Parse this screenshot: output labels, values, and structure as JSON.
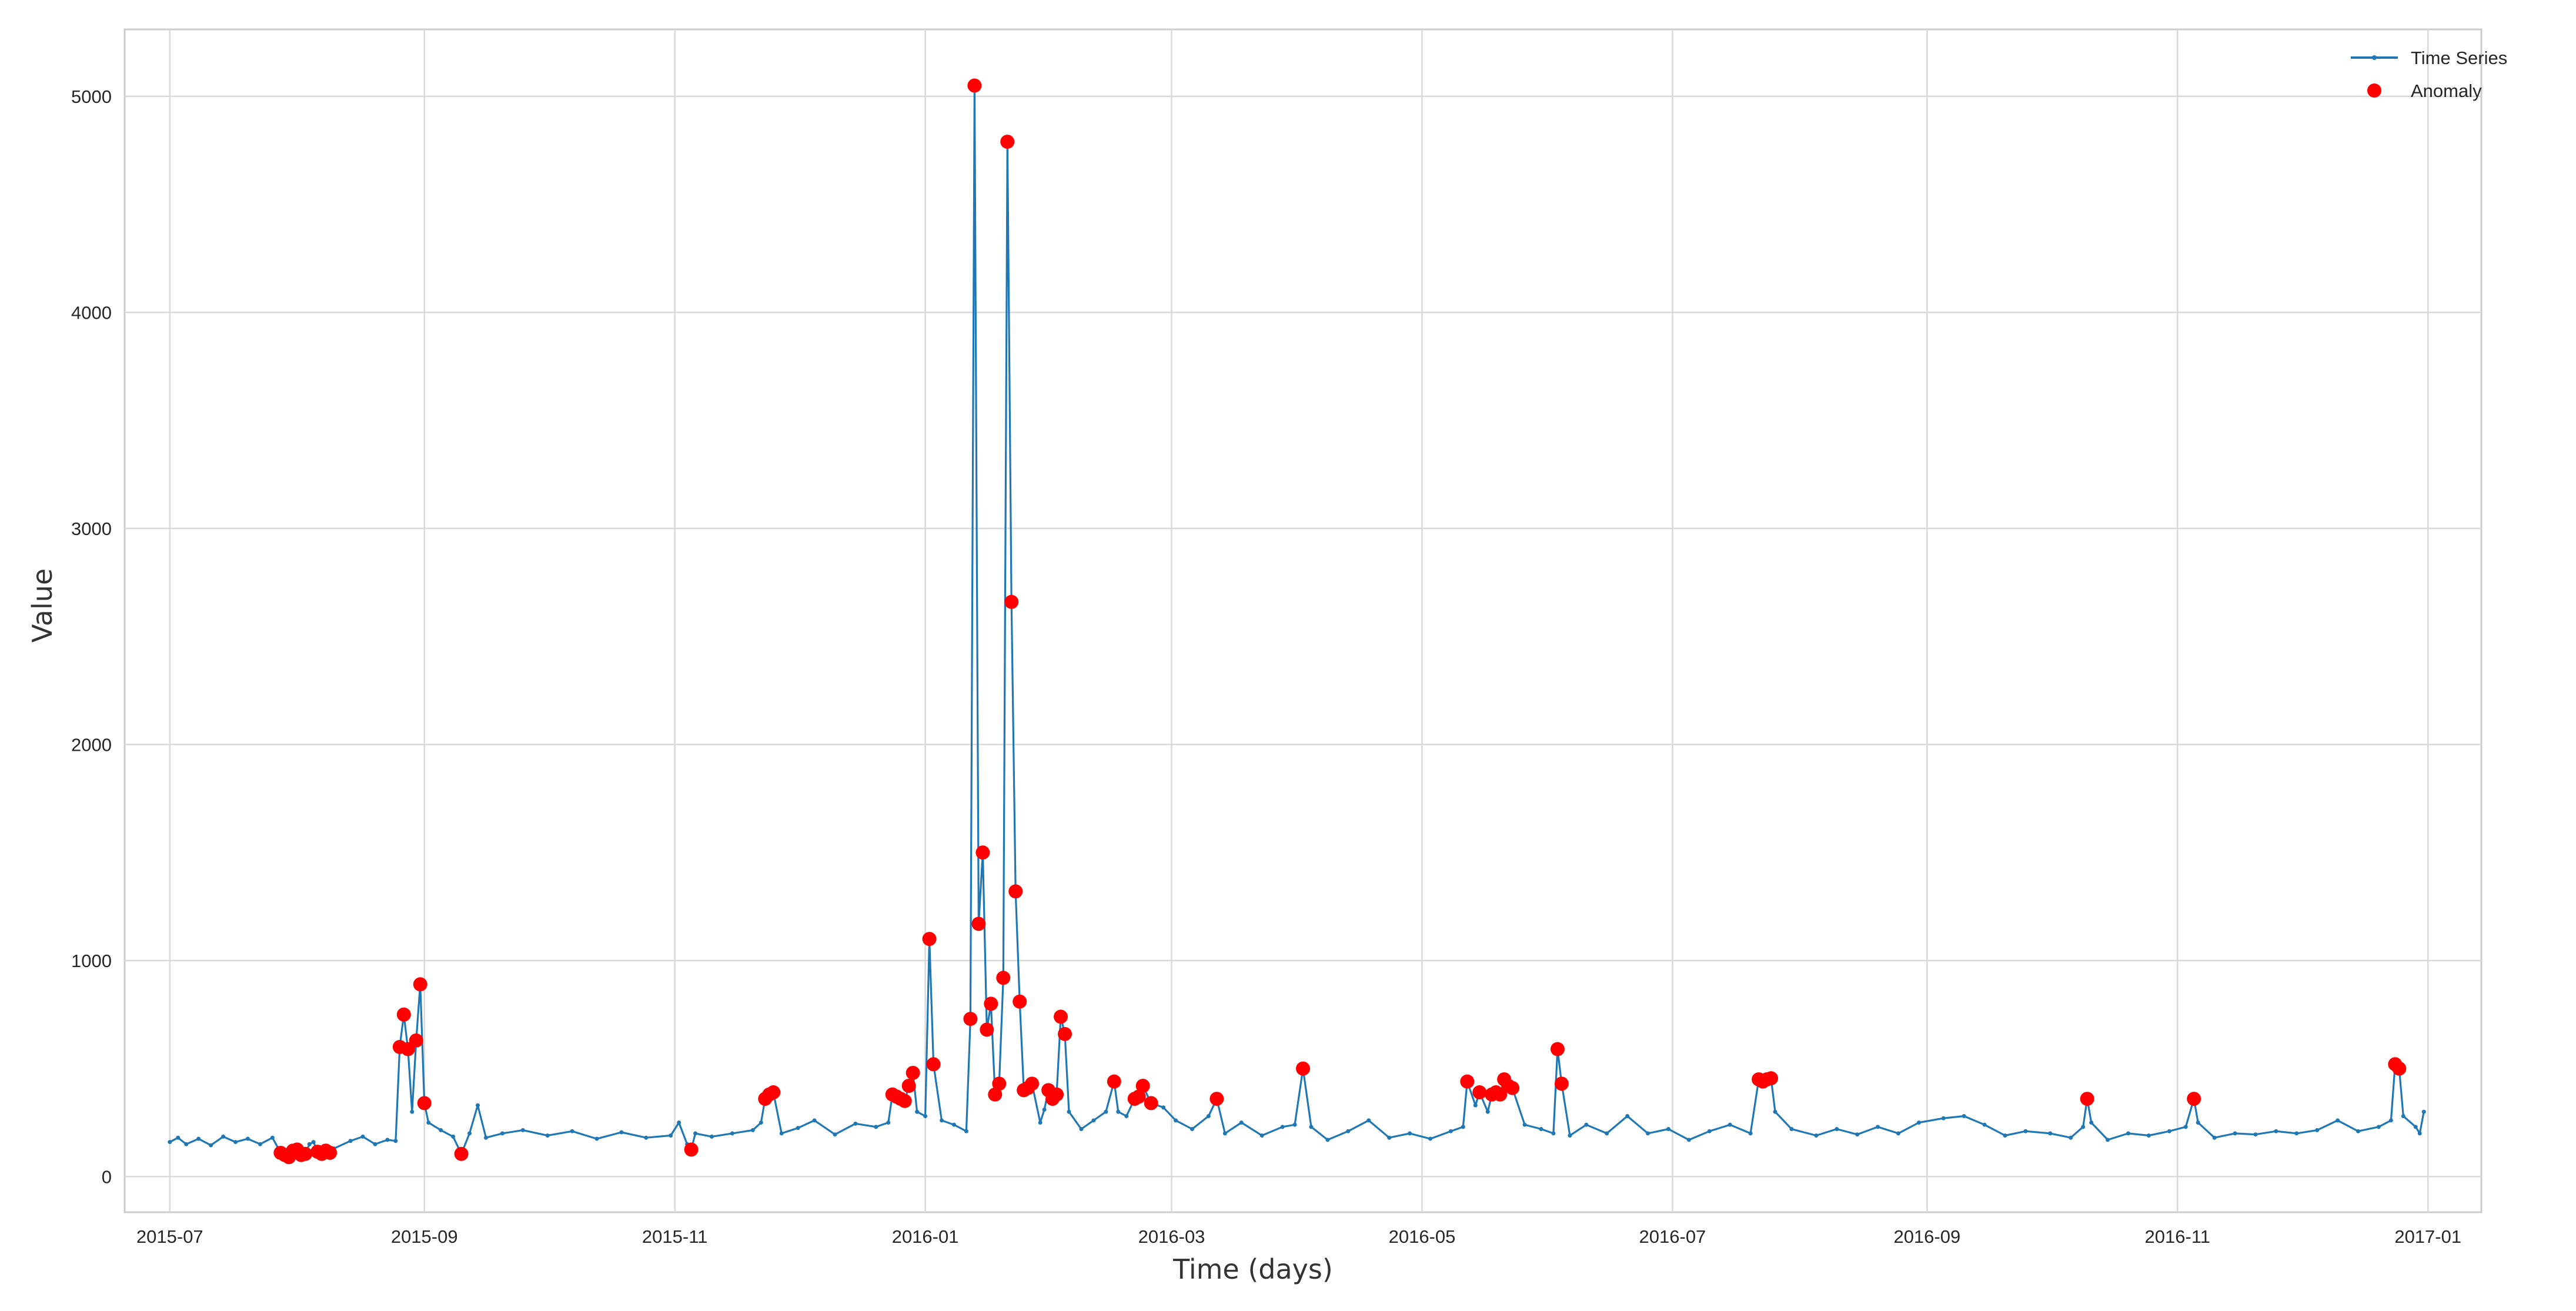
{
  "chart_data": {
    "type": "line",
    "title": "",
    "xlabel": "Time (days)",
    "ylabel": "Value",
    "x_ticks": [
      "2015-07",
      "2015-09",
      "2015-11",
      "2016-01",
      "2016-03",
      "2016-05",
      "2016-07",
      "2016-09",
      "2016-11",
      "2017-01"
    ],
    "y_ticks": [
      0,
      1000,
      2000,
      3000,
      4000,
      5000
    ],
    "xlim": [
      "2015-06-20",
      "2017-01-14"
    ],
    "ylim": [
      -165,
      5310
    ],
    "grid": true,
    "legend_position": "top-right",
    "series": [
      {
        "name": "Time Series",
        "color": "#1f77b4",
        "marker": "point",
        "points": [
          [
            "2015-07-01",
            160
          ],
          [
            "2015-07-03",
            180
          ],
          [
            "2015-07-05",
            150
          ],
          [
            "2015-07-08",
            175
          ],
          [
            "2015-07-11",
            145
          ],
          [
            "2015-07-14",
            185
          ],
          [
            "2015-07-17",
            160
          ],
          [
            "2015-07-20",
            175
          ],
          [
            "2015-07-23",
            150
          ],
          [
            "2015-07-26",
            180
          ],
          [
            "2015-07-28",
            110
          ],
          [
            "2015-07-29",
            100
          ],
          [
            "2015-07-30",
            90
          ],
          [
            "2015-07-31",
            120
          ],
          [
            "2015-08-01",
            125
          ],
          [
            "2015-08-02",
            100
          ],
          [
            "2015-08-03",
            105
          ],
          [
            "2015-08-04",
            150
          ],
          [
            "2015-08-05",
            160
          ],
          [
            "2015-08-06",
            115
          ],
          [
            "2015-08-07",
            105
          ],
          [
            "2015-08-08",
            120
          ],
          [
            "2015-08-09",
            110
          ],
          [
            "2015-08-10",
            130
          ],
          [
            "2015-08-14",
            165
          ],
          [
            "2015-08-17",
            185
          ],
          [
            "2015-08-20",
            150
          ],
          [
            "2015-08-23",
            170
          ],
          [
            "2015-08-25",
            165
          ],
          [
            "2015-08-26",
            600
          ],
          [
            "2015-08-27",
            750
          ],
          [
            "2015-08-28",
            590
          ],
          [
            "2015-08-29",
            300
          ],
          [
            "2015-08-30",
            630
          ],
          [
            "2015-08-31",
            890
          ],
          [
            "2015-09-01",
            340
          ],
          [
            "2015-09-02",
            250
          ],
          [
            "2015-09-05",
            215
          ],
          [
            "2015-09-08",
            185
          ],
          [
            "2015-09-10",
            105
          ],
          [
            "2015-09-12",
            200
          ],
          [
            "2015-09-14",
            330
          ],
          [
            "2015-09-16",
            180
          ],
          [
            "2015-09-20",
            200
          ],
          [
            "2015-09-25",
            215
          ],
          [
            "2015-10-01",
            190
          ],
          [
            "2015-10-07",
            210
          ],
          [
            "2015-10-13",
            175
          ],
          [
            "2015-10-19",
            205
          ],
          [
            "2015-10-25",
            180
          ],
          [
            "2015-10-31",
            190
          ],
          [
            "2015-11-02",
            250
          ],
          [
            "2015-11-04",
            150
          ],
          [
            "2015-11-05",
            125
          ],
          [
            "2015-11-06",
            200
          ],
          [
            "2015-11-10",
            185
          ],
          [
            "2015-11-15",
            200
          ],
          [
            "2015-11-20",
            215
          ],
          [
            "2015-11-22",
            250
          ],
          [
            "2015-11-23",
            360
          ],
          [
            "2015-11-24",
            380
          ],
          [
            "2015-11-25",
            390
          ],
          [
            "2015-11-27",
            200
          ],
          [
            "2015-12-01",
            225
          ],
          [
            "2015-12-05",
            260
          ],
          [
            "2015-12-10",
            195
          ],
          [
            "2015-12-15",
            245
          ],
          [
            "2015-12-20",
            230
          ],
          [
            "2015-12-23",
            250
          ],
          [
            "2015-12-24",
            380
          ],
          [
            "2015-12-25",
            370
          ],
          [
            "2015-12-26",
            360
          ],
          [
            "2015-12-27",
            350
          ],
          [
            "2015-12-28",
            420
          ],
          [
            "2015-12-29",
            480
          ],
          [
            "2015-12-30",
            300
          ],
          [
            "2016-01-01",
            280
          ],
          [
            "2016-01-02",
            1100
          ],
          [
            "2016-01-03",
            520
          ],
          [
            "2016-01-05",
            260
          ],
          [
            "2016-01-08",
            240
          ],
          [
            "2016-01-11",
            210
          ],
          [
            "2016-01-12",
            730
          ],
          [
            "2016-01-13",
            5050
          ],
          [
            "2016-01-14",
            1170
          ],
          [
            "2016-01-15",
            1500
          ],
          [
            "2016-01-16",
            680
          ],
          [
            "2016-01-17",
            800
          ],
          [
            "2016-01-18",
            380
          ],
          [
            "2016-01-19",
            430
          ],
          [
            "2016-01-20",
            920
          ],
          [
            "2016-01-21",
            4790
          ],
          [
            "2016-01-22",
            2660
          ],
          [
            "2016-01-23",
            1320
          ],
          [
            "2016-01-24",
            810
          ],
          [
            "2016-01-25",
            400
          ],
          [
            "2016-01-26",
            410
          ],
          [
            "2016-01-27",
            430
          ],
          [
            "2016-01-29",
            250
          ],
          [
            "2016-01-30",
            310
          ],
          [
            "2016-01-31",
            400
          ],
          [
            "2016-02-01",
            360
          ],
          [
            "2016-02-02",
            380
          ],
          [
            "2016-02-03",
            740
          ],
          [
            "2016-02-04",
            660
          ],
          [
            "2016-02-05",
            300
          ],
          [
            "2016-02-08",
            220
          ],
          [
            "2016-02-11",
            260
          ],
          [
            "2016-02-14",
            300
          ],
          [
            "2016-02-16",
            440
          ],
          [
            "2016-02-17",
            300
          ],
          [
            "2016-02-19",
            280
          ],
          [
            "2016-02-21",
            360
          ],
          [
            "2016-02-22",
            370
          ],
          [
            "2016-02-23",
            420
          ],
          [
            "2016-02-25",
            340
          ],
          [
            "2016-02-28",
            320
          ],
          [
            "2016-03-02",
            260
          ],
          [
            "2016-03-06",
            220
          ],
          [
            "2016-03-10",
            280
          ],
          [
            "2016-03-12",
            360
          ],
          [
            "2016-03-14",
            200
          ],
          [
            "2016-03-18",
            250
          ],
          [
            "2016-03-23",
            190
          ],
          [
            "2016-03-28",
            230
          ],
          [
            "2016-03-31",
            240
          ],
          [
            "2016-04-02",
            500
          ],
          [
            "2016-04-04",
            230
          ],
          [
            "2016-04-08",
            170
          ],
          [
            "2016-04-13",
            210
          ],
          [
            "2016-04-18",
            260
          ],
          [
            "2016-04-23",
            180
          ],
          [
            "2016-04-28",
            200
          ],
          [
            "2016-05-03",
            175
          ],
          [
            "2016-05-08",
            210
          ],
          [
            "2016-05-11",
            230
          ],
          [
            "2016-05-12",
            440
          ],
          [
            "2016-05-14",
            330
          ],
          [
            "2016-05-15",
            390
          ],
          [
            "2016-05-17",
            300
          ],
          [
            "2016-05-18",
            380
          ],
          [
            "2016-05-19",
            390
          ],
          [
            "2016-05-20",
            380
          ],
          [
            "2016-05-21",
            450
          ],
          [
            "2016-05-22",
            420
          ],
          [
            "2016-05-23",
            410
          ],
          [
            "2016-05-26",
            240
          ],
          [
            "2016-05-30",
            220
          ],
          [
            "2016-06-02",
            200
          ],
          [
            "2016-06-03",
            590
          ],
          [
            "2016-06-04",
            430
          ],
          [
            "2016-06-06",
            190
          ],
          [
            "2016-06-10",
            240
          ],
          [
            "2016-06-15",
            200
          ],
          [
            "2016-06-20",
            280
          ],
          [
            "2016-06-25",
            200
          ],
          [
            "2016-06-30",
            220
          ],
          [
            "2016-07-05",
            170
          ],
          [
            "2016-07-10",
            210
          ],
          [
            "2016-07-15",
            240
          ],
          [
            "2016-07-20",
            200
          ],
          [
            "2016-07-22",
            450
          ],
          [
            "2016-07-23",
            440
          ],
          [
            "2016-07-24",
            450
          ],
          [
            "2016-07-25",
            455
          ],
          [
            "2016-07-26",
            300
          ],
          [
            "2016-07-30",
            220
          ],
          [
            "2016-08-05",
            190
          ],
          [
            "2016-08-10",
            220
          ],
          [
            "2016-08-15",
            195
          ],
          [
            "2016-08-20",
            230
          ],
          [
            "2016-08-25",
            200
          ],
          [
            "2016-08-30",
            250
          ],
          [
            "2016-09-05",
            270
          ],
          [
            "2016-09-10",
            280
          ],
          [
            "2016-09-15",
            240
          ],
          [
            "2016-09-20",
            190
          ],
          [
            "2016-09-25",
            210
          ],
          [
            "2016-10-01",
            200
          ],
          [
            "2016-10-06",
            180
          ],
          [
            "2016-10-09",
            230
          ],
          [
            "2016-10-10",
            360
          ],
          [
            "2016-10-11",
            250
          ],
          [
            "2016-10-15",
            170
          ],
          [
            "2016-10-20",
            200
          ],
          [
            "2016-10-25",
            190
          ],
          [
            "2016-10-30",
            210
          ],
          [
            "2016-11-03",
            230
          ],
          [
            "2016-11-05",
            360
          ],
          [
            "2016-11-06",
            250
          ],
          [
            "2016-11-10",
            180
          ],
          [
            "2016-11-15",
            200
          ],
          [
            "2016-11-20",
            195
          ],
          [
            "2016-11-25",
            210
          ],
          [
            "2016-11-30",
            200
          ],
          [
            "2016-12-05",
            215
          ],
          [
            "2016-12-10",
            260
          ],
          [
            "2016-12-15",
            210
          ],
          [
            "2016-12-20",
            230
          ],
          [
            "2016-12-23",
            260
          ],
          [
            "2016-12-24",
            520
          ],
          [
            "2016-12-25",
            500
          ],
          [
            "2016-12-26",
            280
          ],
          [
            "2016-12-29",
            230
          ],
          [
            "2016-12-30",
            200
          ],
          [
            "2016-12-31",
            300
          ]
        ]
      },
      {
        "name": "Anomaly",
        "color": "#ff0000",
        "marker": "dot",
        "points": [
          [
            "2015-07-28",
            110
          ],
          [
            "2015-07-29",
            100
          ],
          [
            "2015-07-30",
            90
          ],
          [
            "2015-07-31",
            120
          ],
          [
            "2015-08-01",
            125
          ],
          [
            "2015-08-02",
            100
          ],
          [
            "2015-08-03",
            105
          ],
          [
            "2015-08-06",
            115
          ],
          [
            "2015-08-07",
            105
          ],
          [
            "2015-08-08",
            120
          ],
          [
            "2015-08-09",
            110
          ],
          [
            "2015-08-26",
            600
          ],
          [
            "2015-08-27",
            750
          ],
          [
            "2015-08-28",
            590
          ],
          [
            "2015-08-30",
            630
          ],
          [
            "2015-08-31",
            890
          ],
          [
            "2015-09-01",
            340
          ],
          [
            "2015-09-10",
            105
          ],
          [
            "2015-11-05",
            125
          ],
          [
            "2015-11-23",
            360
          ],
          [
            "2015-11-24",
            380
          ],
          [
            "2015-11-25",
            390
          ],
          [
            "2015-12-24",
            380
          ],
          [
            "2015-12-25",
            370
          ],
          [
            "2015-12-26",
            360
          ],
          [
            "2015-12-27",
            350
          ],
          [
            "2015-12-28",
            420
          ],
          [
            "2015-12-29",
            480
          ],
          [
            "2016-01-02",
            1100
          ],
          [
            "2016-01-03",
            520
          ],
          [
            "2016-01-12",
            730
          ],
          [
            "2016-01-13",
            5050
          ],
          [
            "2016-01-14",
            1170
          ],
          [
            "2016-01-15",
            1500
          ],
          [
            "2016-01-16",
            680
          ],
          [
            "2016-01-17",
            800
          ],
          [
            "2016-01-18",
            380
          ],
          [
            "2016-01-19",
            430
          ],
          [
            "2016-01-20",
            920
          ],
          [
            "2016-01-21",
            4790
          ],
          [
            "2016-01-22",
            2660
          ],
          [
            "2016-01-23",
            1320
          ],
          [
            "2016-01-24",
            810
          ],
          [
            "2016-01-25",
            400
          ],
          [
            "2016-01-26",
            410
          ],
          [
            "2016-01-27",
            430
          ],
          [
            "2016-01-31",
            400
          ],
          [
            "2016-02-01",
            360
          ],
          [
            "2016-02-02",
            380
          ],
          [
            "2016-02-03",
            740
          ],
          [
            "2016-02-04",
            660
          ],
          [
            "2016-02-16",
            440
          ],
          [
            "2016-02-21",
            360
          ],
          [
            "2016-02-22",
            370
          ],
          [
            "2016-02-23",
            420
          ],
          [
            "2016-02-25",
            340
          ],
          [
            "2016-03-12",
            360
          ],
          [
            "2016-04-02",
            500
          ],
          [
            "2016-05-12",
            440
          ],
          [
            "2016-05-15",
            390
          ],
          [
            "2016-05-18",
            380
          ],
          [
            "2016-05-19",
            390
          ],
          [
            "2016-05-20",
            380
          ],
          [
            "2016-05-21",
            450
          ],
          [
            "2016-05-22",
            420
          ],
          [
            "2016-05-23",
            410
          ],
          [
            "2016-06-03",
            590
          ],
          [
            "2016-06-04",
            430
          ],
          [
            "2016-07-22",
            450
          ],
          [
            "2016-07-23",
            440
          ],
          [
            "2016-07-24",
            450
          ],
          [
            "2016-07-25",
            455
          ],
          [
            "2016-10-10",
            360
          ],
          [
            "2016-11-05",
            360
          ],
          [
            "2016-12-24",
            520
          ],
          [
            "2016-12-25",
            500
          ]
        ]
      }
    ]
  }
}
